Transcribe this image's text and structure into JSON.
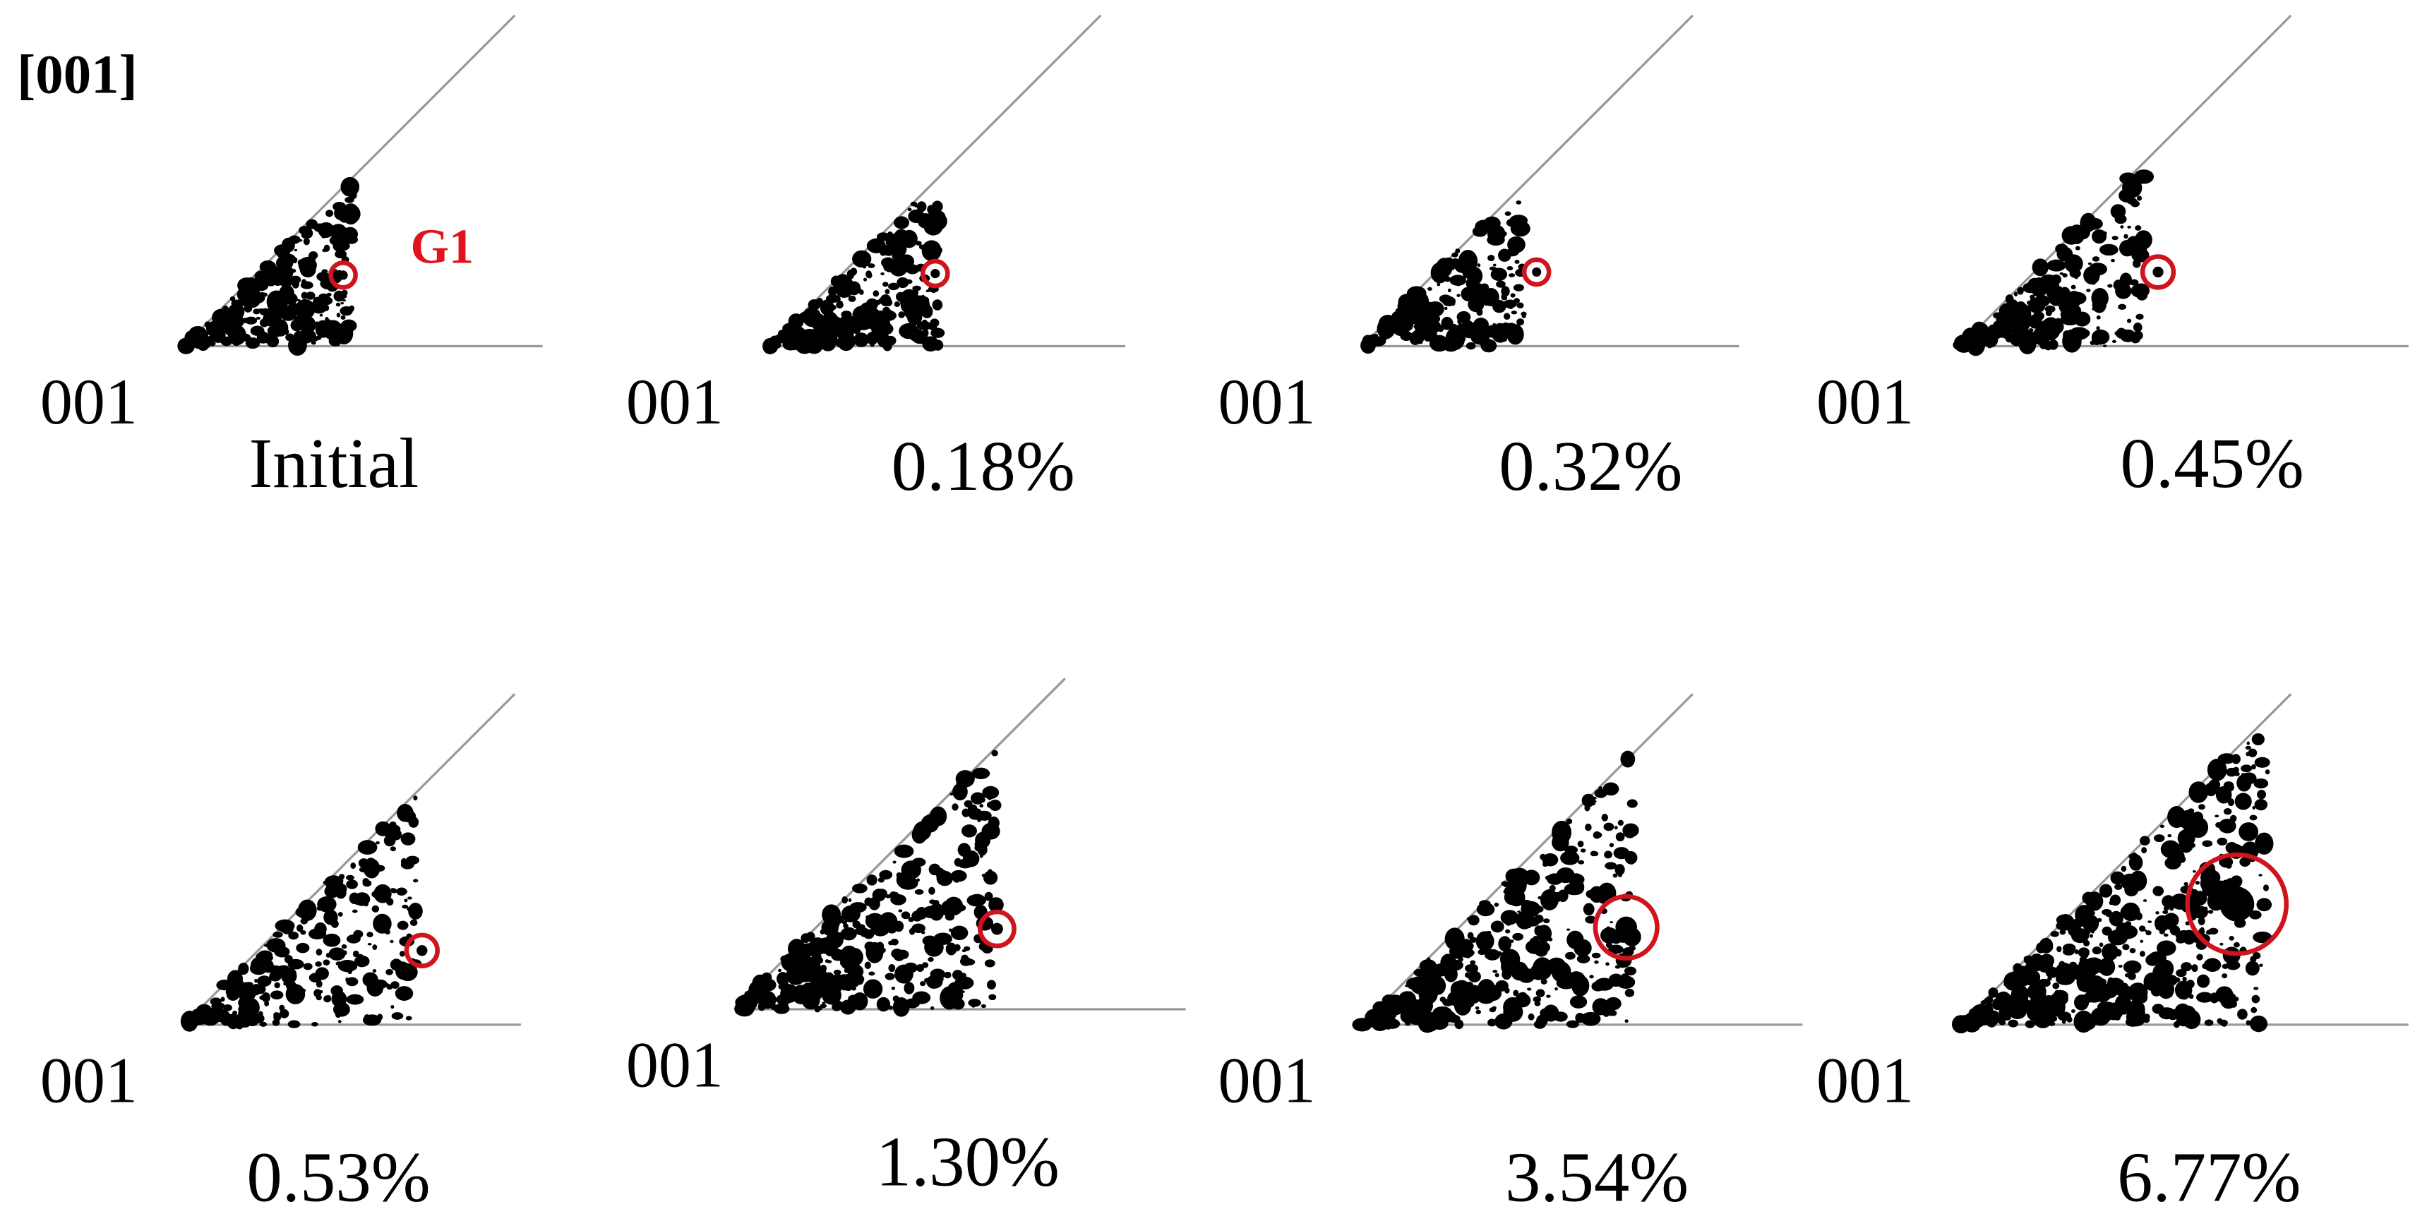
{
  "title": "[001]",
  "annotation": "G1",
  "panels": [
    {
      "corner_label": "001",
      "strain_label": "Initial"
    },
    {
      "corner_label": "001",
      "strain_label": "0.18%"
    },
    {
      "corner_label": "001",
      "strain_label": "0.32%"
    },
    {
      "corner_label": "001",
      "strain_label": "0.45%"
    },
    {
      "corner_label": "001",
      "strain_label": "0.53%"
    },
    {
      "corner_label": "001",
      "strain_label": "1.30%"
    },
    {
      "corner_label": "001",
      "strain_label": "3.54%"
    },
    {
      "corner_label": "001",
      "strain_label": "6.77%"
    }
  ]
}
